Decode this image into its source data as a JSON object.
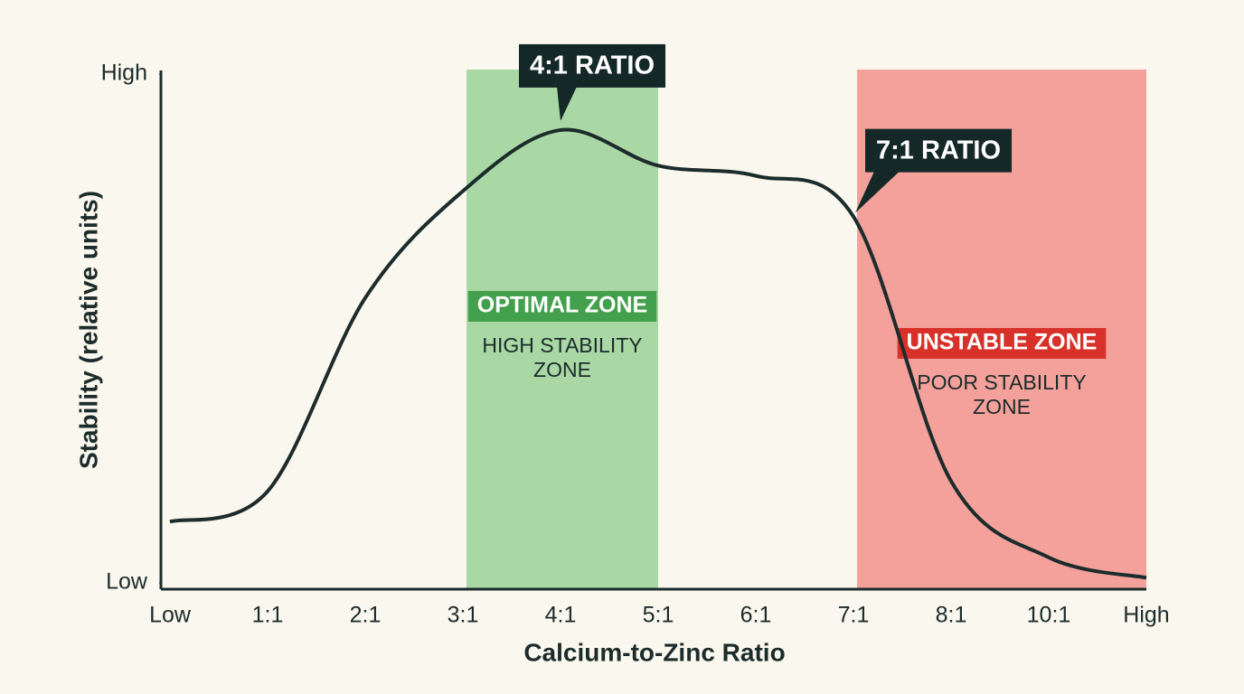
{
  "chart_data": {
    "type": "line",
    "x_label": "Calcium-to-Zinc Ratio",
    "y_label": "Stability (relative units)",
    "categories": [
      "Low",
      "1:1",
      "2:1",
      "3:1",
      "4:1",
      "5:1",
      "6:1",
      "7:1",
      "8:1",
      "10:1",
      "High"
    ],
    "values": [
      12,
      18,
      56,
      77,
      89,
      82,
      80,
      72,
      20,
      5,
      1
    ],
    "color": "#1c2b2b",
    "ylim": [
      0,
      100
    ],
    "yticks": [
      {
        "value": 0,
        "label": "Low"
      },
      {
        "value": 100,
        "label": "High"
      }
    ],
    "zones": [
      {
        "from": "3:1",
        "to": "5:1",
        "color": "#a9d8a5",
        "label": "OPTIMAL ZONE",
        "label_color": "#43a04c",
        "note": [
          "HIGH STABILITY",
          "ZONE"
        ]
      },
      {
        "from": "7:1",
        "to": "High",
        "color": "#f4a19b",
        "label": "UNSTABLE ZONE",
        "label_color": "#d8312a",
        "note": [
          "POOR STABILITY",
          "ZONE"
        ]
      }
    ],
    "annotations": [
      {
        "text": "4:1 RATIO",
        "at": "4:1"
      },
      {
        "text": "7:1 RATIO",
        "at": "7:1"
      }
    ]
  }
}
